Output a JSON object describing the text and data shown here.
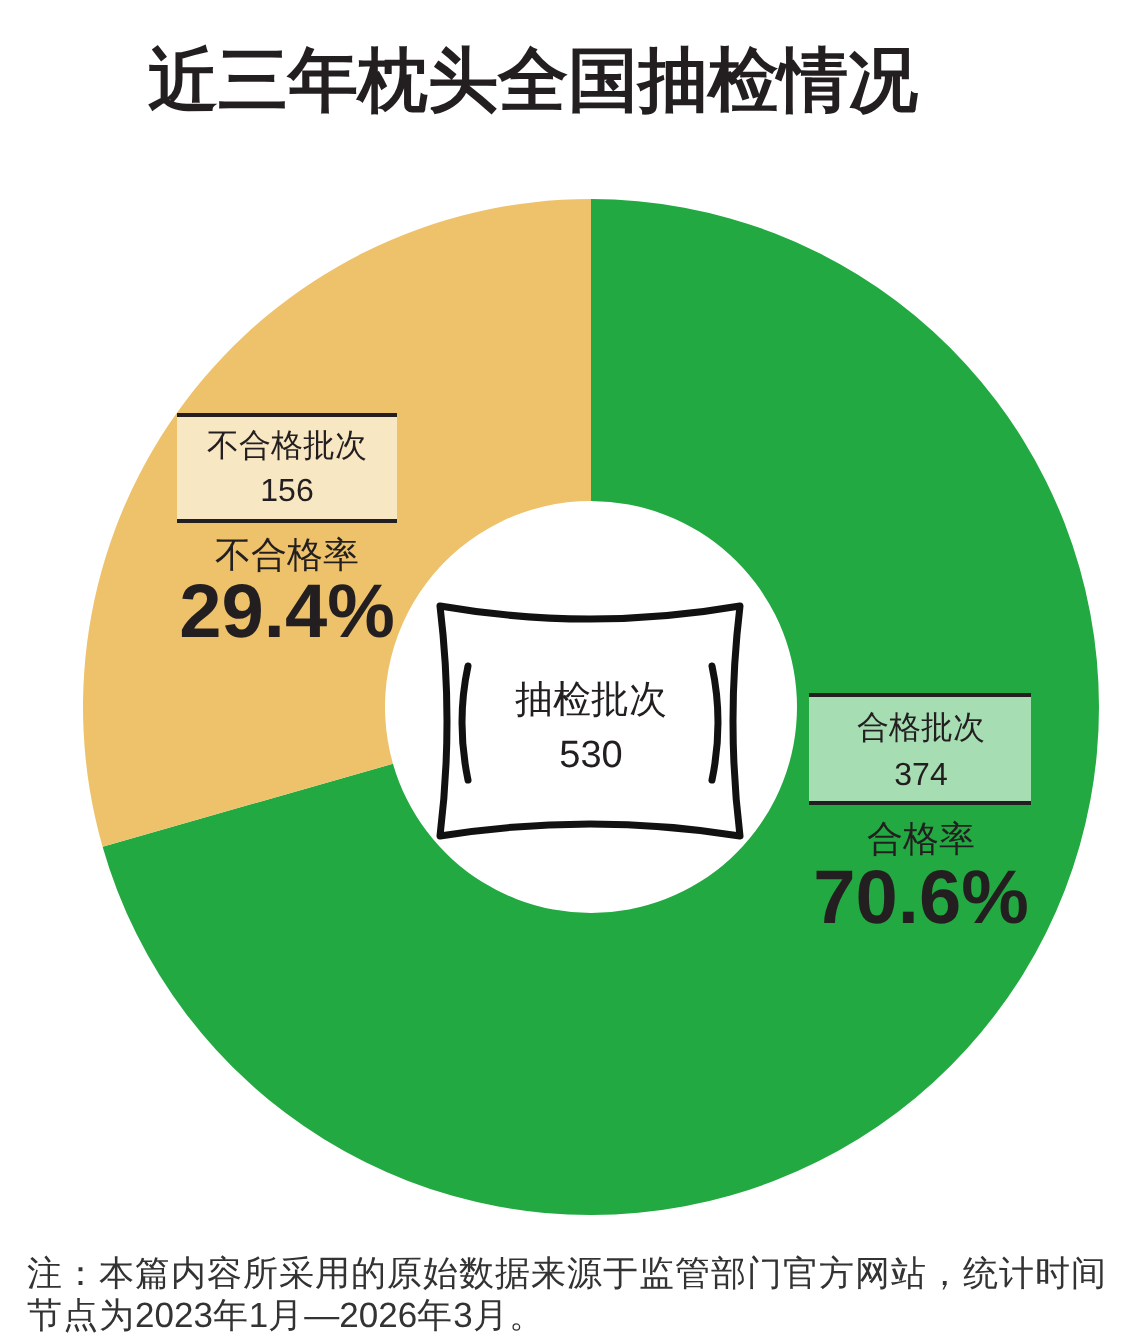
{
  "chart_data": {
    "type": "donut",
    "title": "近三年枕头全国抽检情况",
    "categories": [
      "合格批次",
      "不合格批次"
    ],
    "values": [
      374,
      156
    ],
    "colors": [
      "#23a941",
      "#edc26a"
    ],
    "data_labels": true,
    "annotations": [
      "合格率",
      "70.6%",
      "不合格率",
      "29.4%",
      "抽检批次",
      "530",
      "注：本篇内容所采用的原始数据来源于监管部门官方网站，统计时间节点为2023年1月—2026年3月。"
    ]
  }
}
